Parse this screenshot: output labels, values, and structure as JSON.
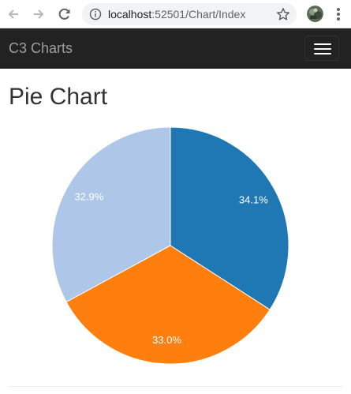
{
  "browser": {
    "url_host": "localhost",
    "url_rest": ":52501/Chart/Index",
    "icons": {
      "back": "arrow-left-icon",
      "forward": "arrow-right-icon",
      "reload": "reload-icon",
      "info": "info-icon",
      "bookmark": "star-icon",
      "menu": "vertical-dots-icon"
    }
  },
  "navbar": {
    "brand": "C3 Charts",
    "background": "#222222"
  },
  "page": {
    "title": "Pie Chart"
  },
  "chart_data": {
    "type": "pie",
    "categories": [
      "",
      "",
      ""
    ],
    "values": [
      34.1,
      33.0,
      32.9
    ],
    "labels": [
      "34.1%",
      "33.0%",
      "32.9%"
    ],
    "colors": [
      "#1f77b4",
      "#ff7f0e",
      "#aec7e8"
    ],
    "title": "",
    "legend": "none"
  }
}
